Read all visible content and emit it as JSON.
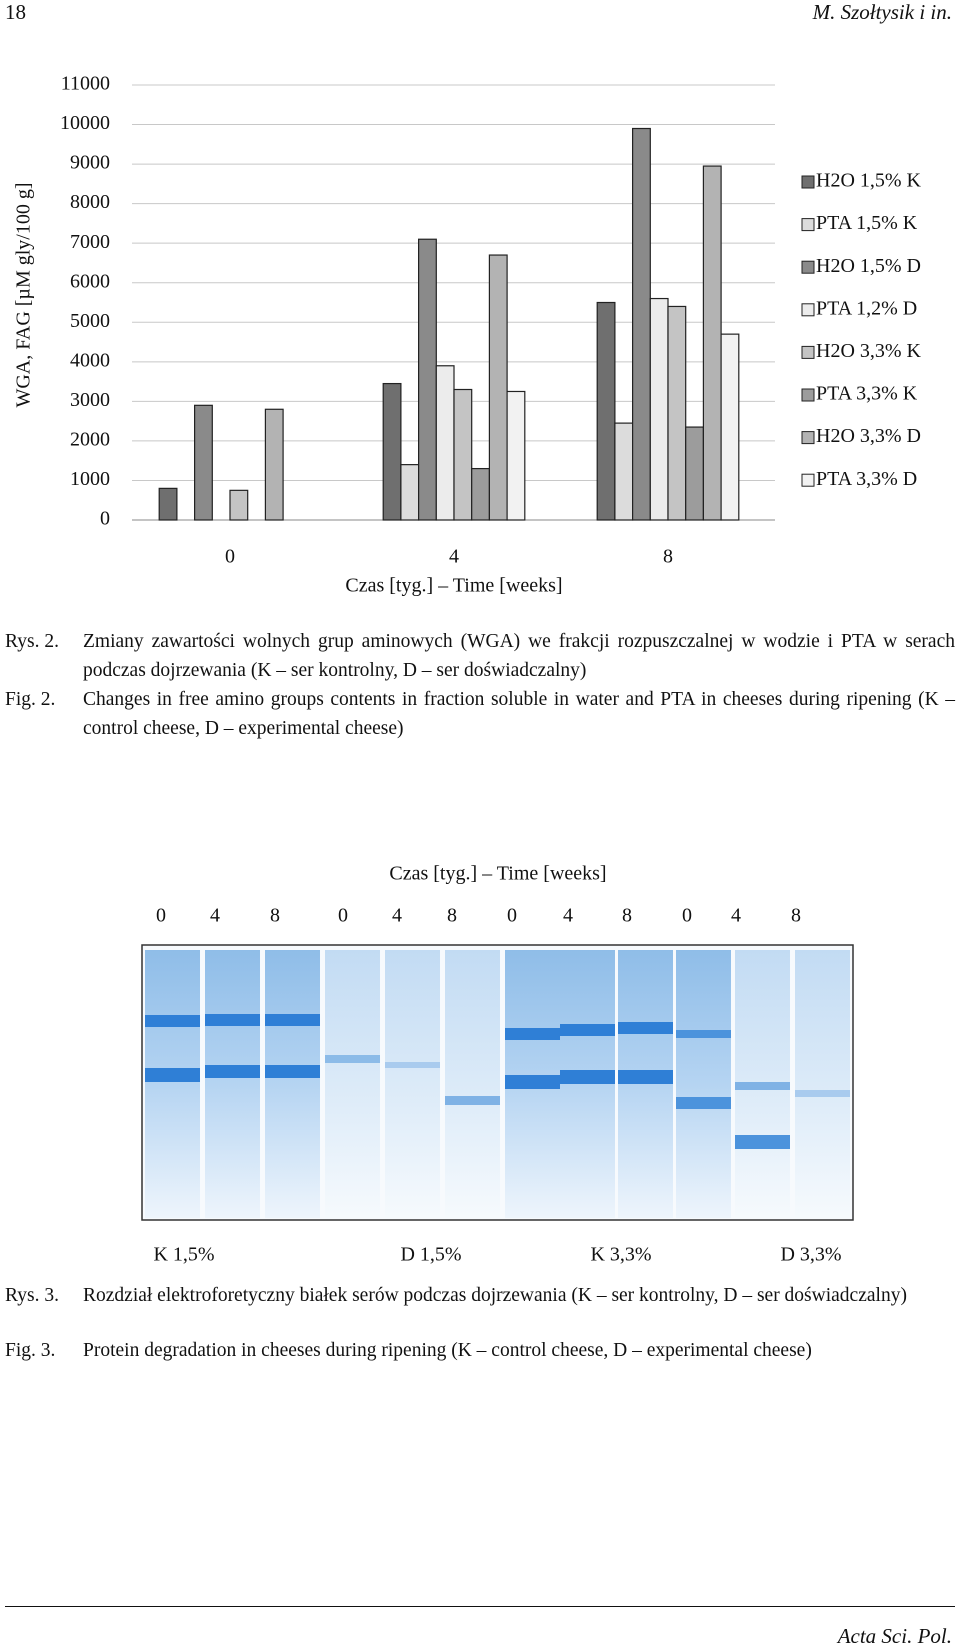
{
  "header": {
    "page_number": "18",
    "running_title": "M. Szołtysik i in."
  },
  "chart_data": {
    "type": "bar",
    "ylabel": "WGA, FAG [µM gly/100 g]",
    "xlabel": "Czas [tyg.] – Time [weeks]",
    "categories": [
      "0",
      "4",
      "8"
    ],
    "series": [
      {
        "name": "H2O 1,5% K",
        "color": "#6f6f6f",
        "values": [
          800,
          3450,
          5500
        ]
      },
      {
        "name": "PTA 1,5% K",
        "color": "#dcdcdc",
        "values": [
          null,
          1400,
          2450
        ]
      },
      {
        "name": "H2O 1,5% D",
        "color": "#8a8a8a",
        "values": [
          2900,
          7100,
          9900
        ]
      },
      {
        "name": "PTA 1,2% D",
        "color": "#ececec",
        "values": [
          null,
          3900,
          5600
        ]
      },
      {
        "name": "H2O 3,3% K",
        "color": "#c4c4c4",
        "values": [
          750,
          3300,
          5400
        ]
      },
      {
        "name": "PTA 3,3% K",
        "color": "#9c9c9c",
        "values": [
          null,
          1300,
          2350
        ]
      },
      {
        "name": "H2O 3,3% D",
        "color": "#b3b3b3",
        "values": [
          2800,
          6700,
          8950
        ]
      },
      {
        "name": "PTA 3,3% D",
        "color": "#f2f2f2",
        "values": [
          null,
          3250,
          4700
        ]
      }
    ],
    "ylim": [
      0,
      11000
    ],
    "yticks": [
      0,
      1000,
      2000,
      3000,
      4000,
      5000,
      6000,
      7000,
      8000,
      9000,
      10000,
      11000
    ],
    "grid": true,
    "legend": "right"
  },
  "figure2": {
    "caption_pl": {
      "label": "Rys. 2.",
      "text": "Zmiany zawartości wolnych grup aminowych (WGA) we frakcji rozpuszczalnej w wodzie i PTA w serach podczas dojrzewania (K – ser kontrolny, D – ser doświadczalny)"
    },
    "caption_en": {
      "label": "Fig. 2.",
      "text": "Changes in free amino groups contents in fraction soluble in water and PTA in cheeses during ripening (K – control cheese, D – experimental cheese)"
    }
  },
  "figure3": {
    "axis_title": "Czas [tyg.] – Time [weeks]",
    "lanes": [
      "0",
      "4",
      "8",
      "0",
      "4",
      "8",
      "0",
      "4",
      "8",
      "0",
      "4",
      "8"
    ],
    "groups": [
      "K 1,5%",
      "D 1,5%",
      "K 3,3%",
      "D 3,3%"
    ],
    "caption_pl": {
      "label": "Rys. 3.",
      "text": "Rozdział elektroforetyczny białek serów podczas dojrzewania (K – ser kontrolny, D – ser doświadczalny)"
    },
    "caption_en": {
      "label": "Fig. 3.",
      "text": "Protein degradation in cheeses during ripening (K – control cheese, D – experimental cheese)"
    }
  },
  "footer": {
    "journal": "Acta Sci. Pol."
  }
}
